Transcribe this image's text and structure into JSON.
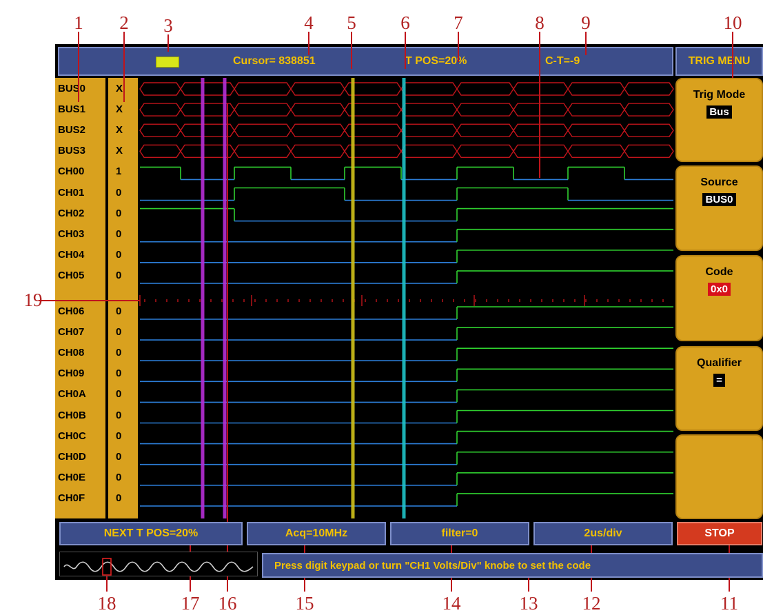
{
  "callouts": [
    "1",
    "2",
    "3",
    "4",
    "5",
    "6",
    "7",
    "8",
    "9",
    "10",
    "11",
    "12",
    "13",
    "14",
    "15",
    "16",
    "17",
    "18",
    "19"
  ],
  "top_bar": {
    "cursor": "Cursor= 838851",
    "tpos": "T POS=20%",
    "ct": "C-T=-9",
    "menu_title": "TRIG MENU"
  },
  "rows": [
    {
      "label": "BUS0",
      "value": "X"
    },
    {
      "label": "BUS1",
      "value": "X"
    },
    {
      "label": "BUS2",
      "value": "X"
    },
    {
      "label": "BUS3",
      "value": "X"
    },
    {
      "label": "CH00",
      "value": "1"
    },
    {
      "label": "CH01",
      "value": "0"
    },
    {
      "label": "CH02",
      "value": "0"
    },
    {
      "label": "CH03",
      "value": "0"
    },
    {
      "label": "CH04",
      "value": "0"
    },
    {
      "label": "CH05",
      "value": "0"
    },
    {
      "label": "CH06",
      "value": "0"
    },
    {
      "label": "CH07",
      "value": "0"
    },
    {
      "label": "CH08",
      "value": "0"
    },
    {
      "label": "CH09",
      "value": "0"
    },
    {
      "label": "CH0A",
      "value": "0"
    },
    {
      "label": "CH0B",
      "value": "0"
    },
    {
      "label": "CH0C",
      "value": "0"
    },
    {
      "label": "CH0D",
      "value": "0"
    },
    {
      "label": "CH0E",
      "value": "0"
    },
    {
      "label": "CH0F",
      "value": "0"
    }
  ],
  "menu": [
    {
      "title": "Trig Mode",
      "value": "Bus"
    },
    {
      "title": "Source",
      "value": "BUS0"
    },
    {
      "title": "Code",
      "value": "0x0"
    },
    {
      "title": "Qualifier",
      "value": "="
    },
    {
      "title": "",
      "value": ""
    }
  ],
  "bottom": {
    "next_tpos": "NEXT T POS=20%",
    "acq": "Acq=10MHz",
    "filter": "filter=0",
    "timebase": "2us/div",
    "stop": "STOP"
  },
  "status_message": "Press digit keypad or turn \"CH1 Volts/Div\" knobe to set the code",
  "colors": {
    "bus": "#c0141b",
    "high_line": "#2fd12f",
    "low_line": "#2c7ed8",
    "cursor_purple": "#b62fd6",
    "cursor_yellow": "#d2c21a",
    "cursor_cyan": "#20c4c8",
    "accent_gold": "#d9a11e",
    "stop_red": "#d43a1f"
  }
}
